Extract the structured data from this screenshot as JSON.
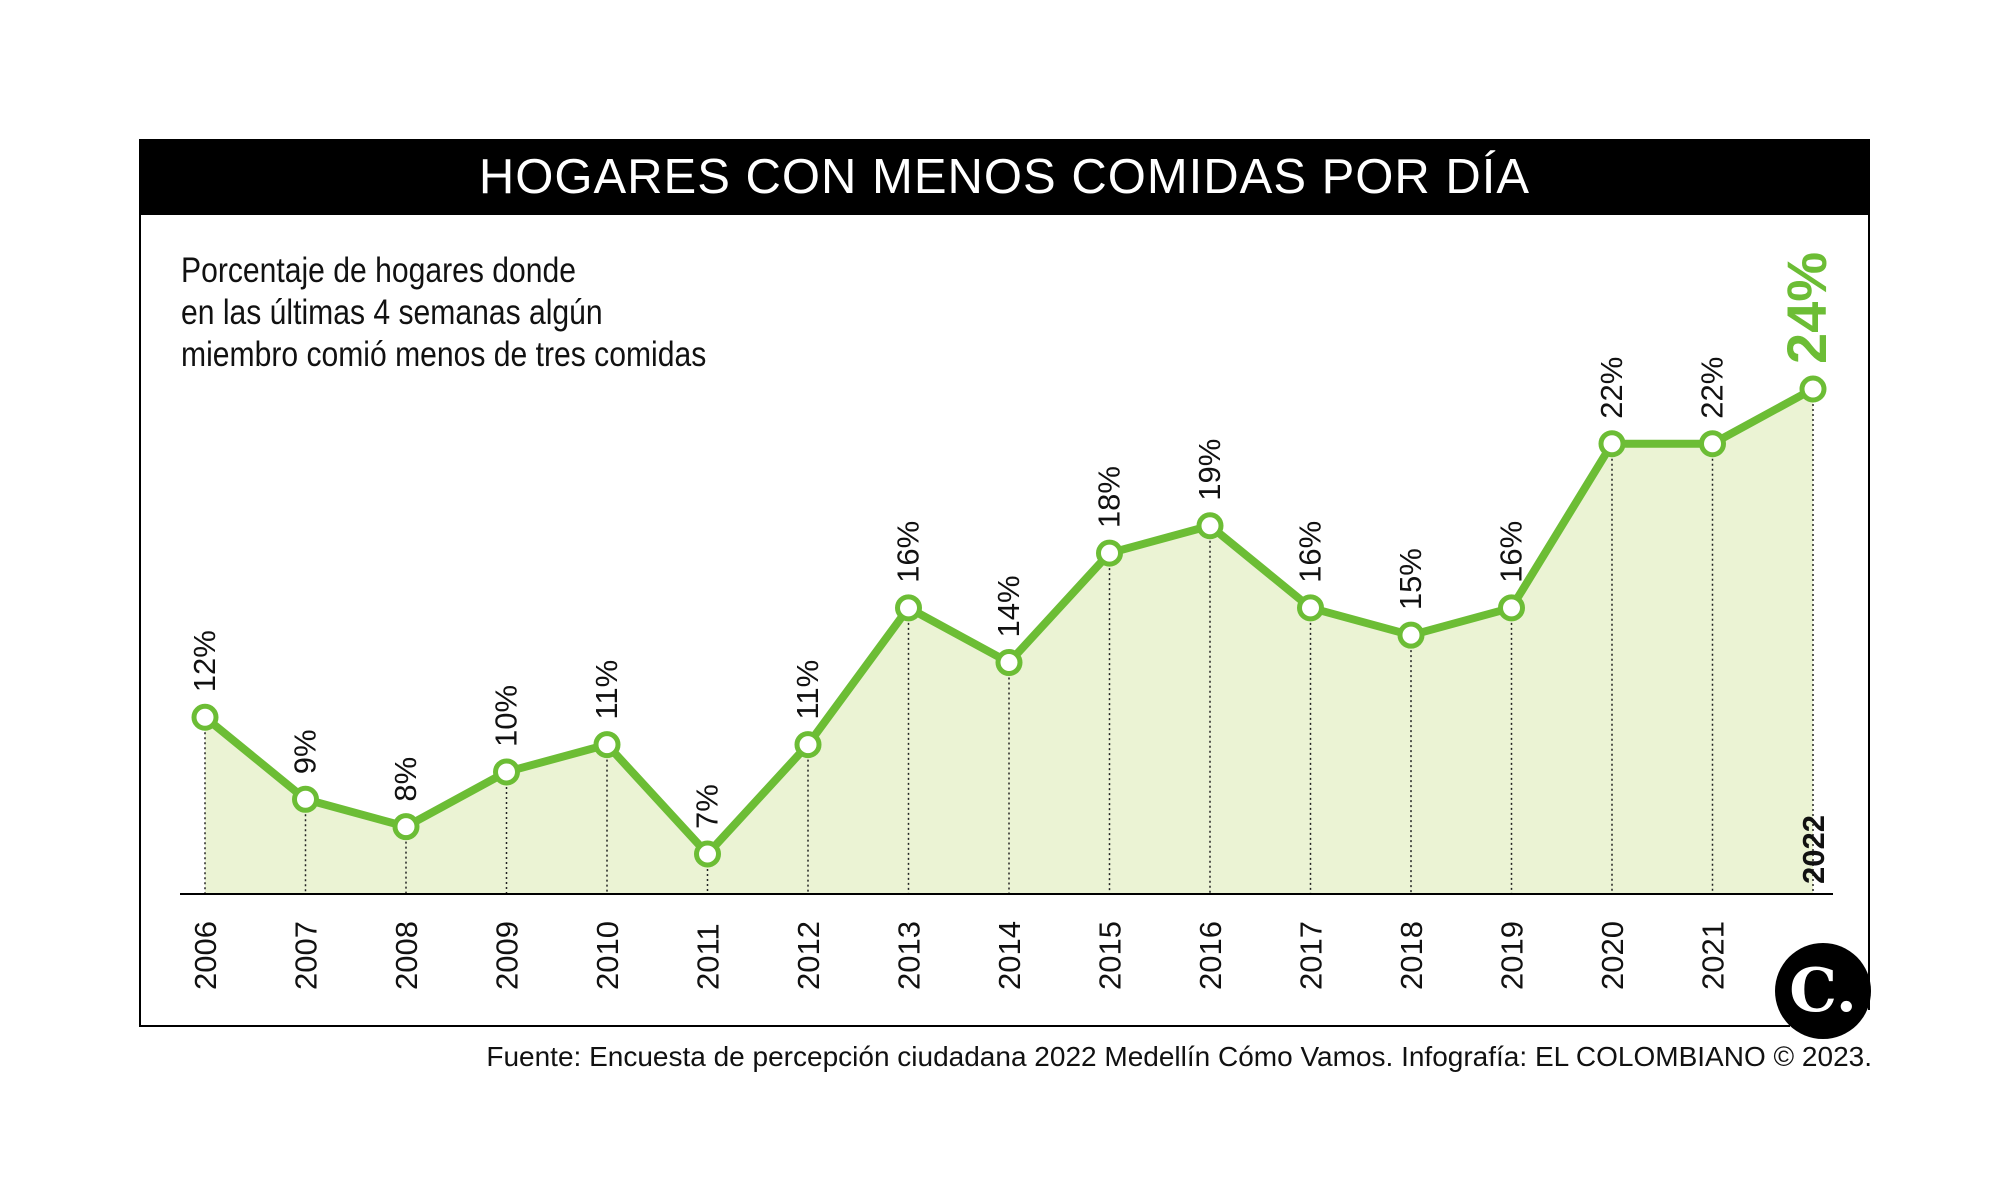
{
  "header": {
    "title": "HOGARES CON MENOS COMIDAS POR DÍA"
  },
  "subtitle": {
    "lines": [
      "Porcentaje de hogares donde",
      "en las últimas 4 semanas algún",
      "miembro comió menos de tres comidas"
    ]
  },
  "footer": {
    "source": "Fuente: Encuesta de percepción ciudadana 2022 Medellín Cómo Vamos. Infografía: EL COLOMBIANO © 2023.",
    "logo_text": "C."
  },
  "chart_data": {
    "type": "area",
    "categories": [
      "2006",
      "2007",
      "2008",
      "2009",
      "2010",
      "2011",
      "2012",
      "2013",
      "2014",
      "2015",
      "2016",
      "2017",
      "2018",
      "2019",
      "2020",
      "2021",
      "2022"
    ],
    "values": [
      12,
      9,
      8,
      10,
      11,
      7,
      11,
      16,
      14,
      18,
      19,
      16,
      15,
      16,
      22,
      22,
      24
    ],
    "labels": [
      "12%",
      "9%",
      "8%",
      "10%",
      "11%",
      "7%",
      "11%",
      "16%",
      "14%",
      "18%",
      "19%",
      "16%",
      "15%",
      "16%",
      "22%",
      "22%",
      "24%"
    ],
    "ylim": [
      5.5,
      24
    ],
    "grid": false,
    "colors": {
      "line": "#6cbd35",
      "fill": "#ebf3d4",
      "highlight": "#6cbd35"
    }
  }
}
